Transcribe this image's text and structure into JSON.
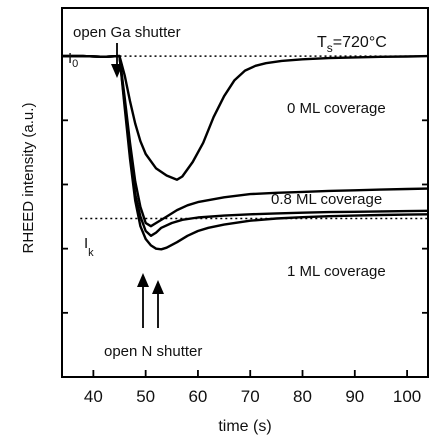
{
  "chart_data": {
    "type": "line",
    "title": "",
    "xlabel": "time (s)",
    "ylabel": "RHEED intensity (a.u.)",
    "xlim": [
      34,
      104
    ],
    "ylim": [
      0,
      1.15
    ],
    "x_ticks": [
      40,
      50,
      60,
      70,
      80,
      90,
      100
    ],
    "x_tick_labels": [
      "40",
      "50",
      "60",
      "70",
      "80",
      "90",
      "100"
    ],
    "grid": false,
    "reference_lines": [
      {
        "label": "I",
        "subscript": "0",
        "y": 1.0
      },
      {
        "label": "I",
        "subscript": "k",
        "y": 0.494
      }
    ],
    "series": [
      {
        "name": "0 ML coverage",
        "x": [
          34,
          38,
          42,
          45,
          46,
          47,
          48,
          49,
          50,
          52,
          54,
          56,
          57,
          59,
          61,
          63,
          65,
          67,
          69,
          71,
          73,
          76,
          80,
          85,
          90,
          95,
          100,
          104
        ],
        "y": [
          1.0,
          1.0,
          0.998,
          1.0,
          0.94,
          0.86,
          0.79,
          0.735,
          0.695,
          0.65,
          0.628,
          0.615,
          0.625,
          0.67,
          0.73,
          0.81,
          0.875,
          0.925,
          0.955,
          0.97,
          0.978,
          0.985,
          0.99,
          0.994,
          0.996,
          0.998,
          0.999,
          1.0
        ]
      },
      {
        "name": "0.8 ML coverage",
        "x": [
          34,
          38,
          42,
          45,
          46,
          47,
          48,
          49,
          50,
          51,
          52,
          54,
          56,
          58,
          60,
          65,
          70,
          75,
          80,
          85,
          90,
          95,
          100,
          104
        ],
        "y": [
          1.0,
          1.0,
          0.998,
          1.0,
          0.87,
          0.73,
          0.61,
          0.53,
          0.48,
          0.47,
          0.48,
          0.5,
          0.52,
          0.535,
          0.545,
          0.56,
          0.57,
          0.574,
          0.577,
          0.58,
          0.582,
          0.584,
          0.586,
          0.587
        ]
      },
      {
        "name": "",
        "x": [
          34,
          38,
          42,
          45,
          46,
          47,
          48,
          49,
          50,
          51,
          52,
          53,
          55,
          57,
          60,
          65,
          70,
          75,
          80,
          85,
          90,
          95,
          100,
          104
        ],
        "y": [
          1.0,
          1.0,
          0.998,
          1.0,
          0.85,
          0.7,
          0.57,
          0.5,
          0.455,
          0.44,
          0.45,
          0.465,
          0.48,
          0.49,
          0.497,
          0.503,
          0.507,
          0.51,
          0.512,
          0.514,
          0.515,
          0.516,
          0.517,
          0.518
        ]
      },
      {
        "name": "1 ML coverage",
        "x": [
          34,
          38,
          42,
          45,
          46,
          47,
          48,
          49,
          50,
          51,
          52,
          53,
          54,
          56,
          58,
          60,
          62,
          65,
          70,
          75,
          80,
          85,
          90,
          95,
          100,
          104
        ],
        "y": [
          1.0,
          1.0,
          0.998,
          1.0,
          0.84,
          0.68,
          0.55,
          0.47,
          0.43,
          0.41,
          0.4,
          0.398,
          0.403,
          0.42,
          0.44,
          0.455,
          0.465,
          0.475,
          0.487,
          0.494,
          0.498,
          0.501,
          0.503,
          0.505,
          0.506,
          0.507
        ]
      }
    ],
    "annotations": {
      "temperature": {
        "prefix": "T",
        "subscript": "s",
        "suffix": "=720°C"
      },
      "open_ga": "open Ga shutter",
      "open_n": "open N shutter"
    }
  }
}
